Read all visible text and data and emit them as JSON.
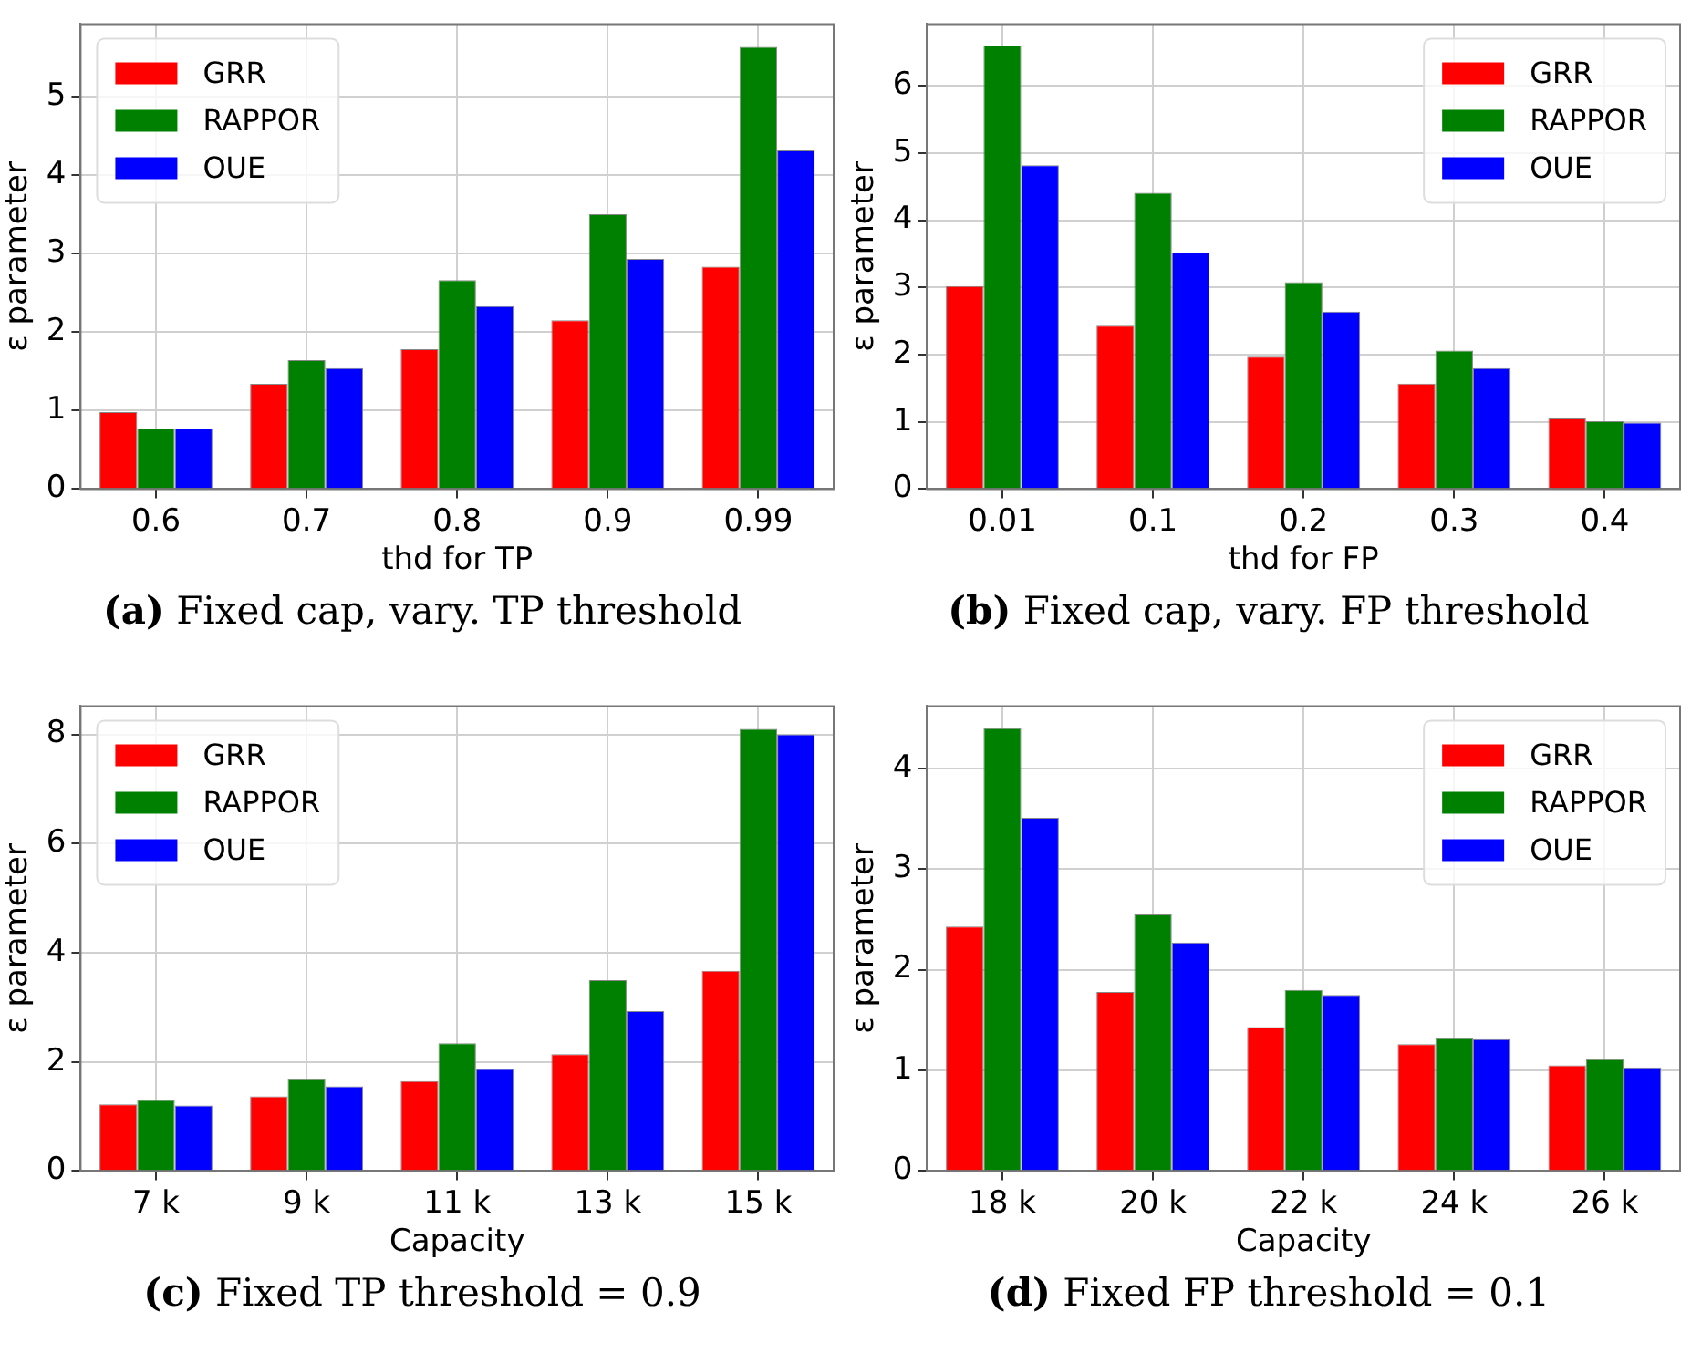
{
  "chart_data": [
    {
      "type": "bar",
      "categories": [
        "0.6",
        "0.7",
        "0.8",
        "0.9",
        "0.99"
      ],
      "xlabel": "thd for TP",
      "ylabel": "ε parameter",
      "ylim": [
        0,
        5.92
      ],
      "yticks": [
        0,
        1,
        2,
        3,
        4,
        5
      ],
      "grid": true,
      "legend": "top left",
      "annotations": [
        "(a) Fixed cap, vary. TP threshold"
      ],
      "series": [
        {
          "name": "GRR",
          "color": "#ff0000",
          "values": [
            0.98,
            1.34,
            1.78,
            2.15,
            2.83
          ]
        },
        {
          "name": "RAPPOR",
          "color": "#008000",
          "values": [
            0.77,
            1.64,
            2.66,
            3.5,
            5.63
          ]
        },
        {
          "name": "OUE",
          "color": "#0000ff",
          "values": [
            0.77,
            1.54,
            2.33,
            2.93,
            4.31
          ]
        }
      ]
    },
    {
      "type": "bar",
      "categories": [
        "0.01",
        "0.1",
        "0.2",
        "0.3",
        "0.4"
      ],
      "xlabel": "thd for FP",
      "ylabel": "ε parameter",
      "ylim": [
        0,
        6.92
      ],
      "yticks": [
        0,
        1,
        2,
        3,
        4,
        5,
        6
      ],
      "grid": true,
      "legend": "top right",
      "annotations": [
        "(b) Fixed cap, vary. FP threshold"
      ],
      "series": [
        {
          "name": "GRR",
          "color": "#ff0000",
          "values": [
            3.02,
            2.43,
            1.97,
            1.57,
            1.05
          ]
        },
        {
          "name": "RAPPOR",
          "color": "#008000",
          "values": [
            6.6,
            4.41,
            3.08,
            2.06,
            1.01
          ]
        },
        {
          "name": "OUE",
          "color": "#0000ff",
          "values": [
            4.82,
            3.52,
            2.64,
            1.8,
            0.99
          ]
        }
      ]
    },
    {
      "type": "bar",
      "categories": [
        "7 k",
        "9 k",
        "11 k",
        "13 k",
        "15 k"
      ],
      "xlabel": "Capacity",
      "ylabel": "ε parameter",
      "ylim": [
        0,
        8.52
      ],
      "yticks": [
        0,
        2,
        4,
        6,
        8
      ],
      "grid": true,
      "legend": "top left",
      "annotations": [
        "(c) Fixed TP threshold = 0.9"
      ],
      "series": [
        {
          "name": "GRR",
          "color": "#ff0000",
          "values": [
            1.22,
            1.37,
            1.65,
            2.14,
            3.67
          ]
        },
        {
          "name": "RAPPOR",
          "color": "#008000",
          "values": [
            1.3,
            1.68,
            2.34,
            3.5,
            8.1
          ]
        },
        {
          "name": "OUE",
          "color": "#0000ff",
          "values": [
            1.2,
            1.55,
            1.87,
            2.93,
            8.0
          ]
        }
      ]
    },
    {
      "type": "bar",
      "categories": [
        "18 k",
        "20 k",
        "22 k",
        "24 k",
        "26 k"
      ],
      "xlabel": "Capacity",
      "ylabel": "ε parameter",
      "ylim": [
        0,
        4.62
      ],
      "yticks": [
        0,
        1,
        2,
        3,
        4
      ],
      "grid": true,
      "legend": "top right",
      "annotations": [
        "(d) Fixed FP threshold = 0.1"
      ],
      "series": [
        {
          "name": "GRR",
          "color": "#ff0000",
          "values": [
            2.43,
            1.78,
            1.43,
            1.26,
            1.05
          ]
        },
        {
          "name": "RAPPOR",
          "color": "#008000",
          "values": [
            4.4,
            2.55,
            1.8,
            1.32,
            1.11
          ]
        },
        {
          "name": "OUE",
          "color": "#0000ff",
          "values": [
            3.51,
            2.27,
            1.75,
            1.31,
            1.03
          ]
        }
      ]
    }
  ]
}
